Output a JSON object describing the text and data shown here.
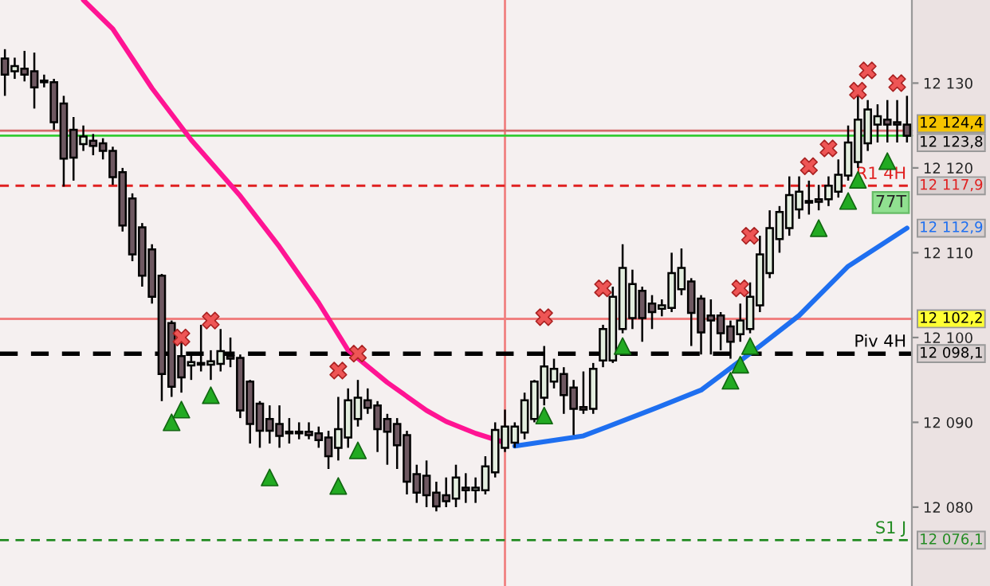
{
  "chart_data": {
    "type": "candlestick",
    "categories": [
      null,
      null,
      null,
      null,
      null,
      null,
      null,
      null,
      null,
      null,
      null,
      null,
      null,
      null,
      null,
      null,
      null,
      null,
      null,
      null,
      null,
      null,
      null,
      null,
      null,
      null,
      null,
      null,
      null,
      null,
      null,
      null,
      null,
      null,
      null,
      null,
      null,
      null,
      null,
      null,
      null,
      null,
      null,
      null,
      null,
      null,
      null,
      null,
      null,
      null,
      null,
      null,
      null,
      null,
      null,
      null,
      null,
      null,
      null,
      null,
      null,
      null,
      null,
      null,
      null,
      null,
      null,
      null,
      null,
      null,
      null,
      null,
      null,
      null,
      null,
      null,
      null,
      null,
      null,
      null,
      null,
      null,
      null,
      null,
      null,
      null,
      null,
      null,
      null,
      null,
      null,
      null,
      null
    ],
    "ohlc": [
      [
        12132.9,
        12134.0,
        12128.5,
        12131.0
      ],
      [
        12131.4,
        12133.0,
        12130.5,
        12132.0
      ],
      [
        12131.7,
        12133.8,
        12130.2,
        12131.0
      ],
      [
        12131.4,
        12133.6,
        12127.0,
        12129.5
      ],
      [
        12130.3,
        12131.0,
        12129.5,
        12130.1
      ],
      [
        12130.1,
        12130.5,
        12124.5,
        12125.4
      ],
      [
        12127.6,
        12128.5,
        12117.8,
        12121.1
      ],
      [
        12124.5,
        12126.0,
        12118.5,
        12121.2
      ],
      [
        12122.8,
        12125.0,
        12122.0,
        12123.7
      ],
      [
        12123.2,
        12124.0,
        12121.5,
        12122.6
      ],
      [
        12122.9,
        12123.5,
        12121.0,
        12122.0
      ],
      [
        12122.0,
        12122.5,
        12118.0,
        12118.9
      ],
      [
        12119.5,
        12120.0,
        12112.5,
        12113.2
      ],
      [
        12116.4,
        12117.0,
        12109.0,
        12109.8
      ],
      [
        12113.0,
        12113.5,
        12106.0,
        12107.3
      ],
      [
        12110.4,
        12111.0,
        12104.0,
        12104.8
      ],
      [
        12107.3,
        12107.5,
        12092.5,
        12095.7
      ],
      [
        12101.7,
        12102.0,
        12093.0,
        12094.2
      ],
      [
        12097.8,
        12099.5,
        12093.5,
        12095.3
      ],
      [
        12096.7,
        12098.0,
        12095.0,
        12097.1
      ],
      [
        12096.8,
        12101.5,
        12096.0,
        12097.0
      ],
      [
        12096.8,
        12098.5,
        12095.0,
        12097.2
      ],
      [
        12096.9,
        12101.0,
        12096.0,
        12098.4
      ],
      [
        12097.8,
        12100.0,
        12096.5,
        12097.5
      ],
      [
        12097.6,
        12098.0,
        12090.5,
        12091.4
      ],
      [
        12094.8,
        12095.0,
        12087.5,
        12089.8
      ],
      [
        12092.2,
        12092.5,
        12087.0,
        12089.0
      ],
      [
        12090.4,
        12092.0,
        12087.5,
        12089.0
      ],
      [
        12089.8,
        12092.0,
        12087.0,
        12088.4
      ],
      [
        12088.9,
        12090.5,
        12087.5,
        12088.7
      ],
      [
        12088.9,
        12090.0,
        12088.0,
        12088.7
      ],
      [
        12088.9,
        12090.0,
        12088.0,
        12088.5
      ],
      [
        12088.7,
        12089.5,
        12087.0,
        12087.9
      ],
      [
        12088.2,
        12089.0,
        12084.5,
        12086.0
      ],
      [
        12087.0,
        12093.0,
        12085.5,
        12089.2
      ],
      [
        12088.2,
        12094.0,
        12087.0,
        12092.6
      ],
      [
        12090.4,
        12095.0,
        12089.5,
        12092.9
      ],
      [
        12092.6,
        12094.0,
        12091.0,
        12091.7
      ],
      [
        12092.0,
        12092.5,
        12086.5,
        12089.2
      ],
      [
        12090.4,
        12091.0,
        12085.0,
        12088.9
      ],
      [
        12089.8,
        12090.5,
        12084.5,
        12087.3
      ],
      [
        12088.5,
        12089.0,
        12081.5,
        12083.0
      ],
      [
        12083.9,
        12085.0,
        12080.5,
        12081.7
      ],
      [
        12083.7,
        12085.5,
        12080.0,
        12081.4
      ],
      [
        12081.7,
        12083.0,
        12079.5,
        12080.1
      ],
      [
        12081.4,
        12083.5,
        12080.0,
        12080.7
      ],
      [
        12081.0,
        12085.0,
        12080.0,
        12083.5
      ],
      [
        12082.3,
        12084.0,
        12080.5,
        12082.0
      ],
      [
        12082.0,
        12083.5,
        12080.5,
        12082.3
      ],
      [
        12082.0,
        12086.0,
        12081.5,
        12084.8
      ],
      [
        12084.1,
        12090.0,
        12083.5,
        12089.1
      ],
      [
        12087.0,
        12091.5,
        12086.5,
        12089.5
      ],
      [
        12087.6,
        12090.0,
        12087.0,
        12089.5
      ],
      [
        12088.8,
        12093.5,
        12088.0,
        12092.6
      ],
      [
        12090.4,
        12095.0,
        12090.0,
        12094.8
      ],
      [
        12092.9,
        12099.0,
        12092.0,
        12096.6
      ],
      [
        12094.8,
        12097.5,
        12094.0,
        12096.3
      ],
      [
        12095.7,
        12096.5,
        12091.0,
        12093.2
      ],
      [
        12094.1,
        12095.0,
        12088.5,
        12091.6
      ],
      [
        12091.8,
        12096.0,
        12091.0,
        12091.5
      ],
      [
        12091.6,
        12097.0,
        12091.0,
        12096.3
      ],
      [
        12097.3,
        12101.5,
        12096.5,
        12101.0
      ],
      [
        12097.3,
        12106.0,
        12097.0,
        12104.8
      ],
      [
        12101.0,
        12111.0,
        12100.5,
        12108.2
      ],
      [
        12102.3,
        12108.0,
        12101.0,
        12106.3
      ],
      [
        12105.5,
        12106.0,
        12099.5,
        12102.3
      ],
      [
        12104.0,
        12105.0,
        12101.0,
        12103.0
      ],
      [
        12103.4,
        12104.5,
        12102.5,
        12103.8
      ],
      [
        12103.5,
        12110.0,
        12103.0,
        12107.6
      ],
      [
        12105.7,
        12110.5,
        12105.0,
        12108.2
      ],
      [
        12106.6,
        12107.0,
        12099.0,
        12102.9
      ],
      [
        12104.6,
        12105.0,
        12098.0,
        12100.6
      ],
      [
        12102.6,
        12104.5,
        12098.0,
        12102.0
      ],
      [
        12102.6,
        12103.0,
        12098.5,
        12100.5
      ],
      [
        12101.3,
        12102.0,
        12097.5,
        12099.5
      ],
      [
        12100.4,
        12104.0,
        12099.5,
        12102.0
      ],
      [
        12101.0,
        12106.5,
        12100.5,
        12104.8
      ],
      [
        12103.8,
        12112.0,
        12103.0,
        12109.8
      ],
      [
        12107.6,
        12115.0,
        12107.0,
        12112.9
      ],
      [
        12111.6,
        12115.5,
        12110.0,
        12114.8
      ],
      [
        12112.9,
        12119.0,
        12112.0,
        12116.8
      ],
      [
        12115.1,
        12119.0,
        12114.0,
        12117.2
      ],
      [
        12116.1,
        12118.5,
        12114.5,
        12115.9
      ],
      [
        12116.3,
        12118.0,
        12115.0,
        12116.0
      ],
      [
        12116.3,
        12119.0,
        12115.5,
        12117.9
      ],
      [
        12117.2,
        12121.0,
        12116.5,
        12119.2
      ],
      [
        12119.1,
        12125.0,
        12118.5,
        12123.0
      ],
      [
        12120.7,
        12128.5,
        12120.0,
        12125.7
      ],
      [
        12122.9,
        12128.0,
        12122.0,
        12126.9
      ],
      [
        12125.1,
        12127.5,
        12123.0,
        12126.1
      ],
      [
        12125.7,
        12128.0,
        12123.0,
        12125.1
      ],
      [
        12125.4,
        12128.0,
        12123.0,
        12125.1
      ],
      [
        12125.1,
        12128.5,
        12123.0,
        12123.8
      ]
    ],
    "series": [
      {
        "type": "line",
        "color": "#ff1493",
        "values": [
          null,
          null,
          null,
          null,
          null,
          null,
          null,
          null,
          12139.8,
          null,
          null,
          12136.4,
          null,
          null,
          null,
          12129.4,
          null,
          null,
          null,
          12123.3,
          null,
          null,
          null,
          null,
          12116.7,
          null,
          null,
          null,
          12110.7,
          null,
          null,
          null,
          12104.1,
          null,
          null,
          12098.5,
          null,
          null,
          null,
          12094.7,
          null,
          null,
          null,
          12091.4,
          null,
          12090.1,
          null,
          null,
          12088.7,
          null,
          null,
          12087.6,
          null,
          null,
          null,
          null,
          null,
          null,
          null,
          null,
          null,
          null,
          null,
          null,
          null,
          null,
          null,
          null,
          null,
          null,
          null,
          null,
          null,
          null,
          null,
          null,
          null,
          null,
          null,
          null,
          null,
          null,
          null,
          null,
          null,
          null,
          null,
          null,
          null,
          null,
          null,
          null,
          null
        ]
      },
      {
        "type": "line",
        "color": "#1e6ff0",
        "values": [
          null,
          null,
          null,
          null,
          null,
          null,
          null,
          null,
          null,
          null,
          null,
          null,
          null,
          null,
          null,
          null,
          null,
          null,
          null,
          null,
          null,
          null,
          null,
          null,
          null,
          null,
          null,
          null,
          null,
          null,
          null,
          null,
          null,
          null,
          null,
          null,
          null,
          null,
          null,
          null,
          null,
          null,
          null,
          null,
          null,
          null,
          null,
          null,
          null,
          null,
          null,
          null,
          12087.2,
          null,
          null,
          null,
          null,
          null,
          null,
          12088.4,
          null,
          null,
          null,
          null,
          null,
          null,
          12091.5,
          null,
          null,
          null,
          null,
          12093.8,
          null,
          null,
          null,
          null,
          null,
          12099.0,
          null,
          null,
          null,
          12102.6,
          null,
          null,
          null,
          null,
          12108.4,
          null,
          null,
          null,
          null,
          null,
          12112.9
        ]
      },
      {
        "type": "scatter",
        "marker": "cross",
        "color": "#ee5555",
        "values": [
          null,
          null,
          null,
          null,
          null,
          null,
          null,
          null,
          null,
          null,
          null,
          null,
          null,
          null,
          null,
          null,
          null,
          null,
          12100.0,
          null,
          null,
          12102.0,
          null,
          null,
          null,
          null,
          null,
          null,
          null,
          null,
          null,
          null,
          null,
          null,
          12096.1,
          null,
          12098.1,
          null,
          null,
          null,
          null,
          null,
          null,
          null,
          null,
          null,
          null,
          null,
          null,
          null,
          null,
          null,
          null,
          null,
          null,
          12102.4,
          null,
          null,
          null,
          null,
          null,
          12105.8,
          null,
          null,
          null,
          null,
          null,
          null,
          null,
          null,
          null,
          null,
          null,
          null,
          null,
          12105.8,
          12112.0,
          null,
          null,
          null,
          null,
          null,
          12120.2,
          null,
          12122.3,
          null,
          null,
          12129.1,
          12131.5,
          null,
          null,
          12130.0,
          null
        ]
      },
      {
        "type": "scatter",
        "marker": "triangle",
        "color": "#22aa22",
        "values": [
          null,
          null,
          null,
          null,
          null,
          null,
          null,
          null,
          null,
          null,
          null,
          null,
          null,
          null,
          null,
          null,
          null,
          12090.0,
          12091.5,
          null,
          null,
          12093.2,
          null,
          null,
          null,
          null,
          null,
          12083.5,
          null,
          null,
          null,
          null,
          null,
          null,
          12082.5,
          null,
          12086.7,
          null,
          null,
          null,
          null,
          null,
          null,
          null,
          null,
          null,
          null,
          null,
          null,
          null,
          null,
          null,
          null,
          null,
          null,
          12090.8,
          null,
          null,
          null,
          null,
          null,
          null,
          null,
          12099.0,
          null,
          null,
          null,
          null,
          null,
          null,
          null,
          null,
          null,
          null,
          12094.9,
          12096.8,
          12099.0,
          null,
          null,
          null,
          null,
          null,
          null,
          12112.9,
          null,
          null,
          12116.1,
          12118.6,
          null,
          null,
          12120.8,
          null,
          null
        ]
      }
    ],
    "ylim": [
      12070.7,
      12139.8
    ],
    "yticks": [
      {
        "value": 12130,
        "label": "12 130"
      },
      {
        "value": 12120,
        "label": "12 120"
      },
      {
        "value": 12110,
        "label": "12 110"
      },
      {
        "value": 12100,
        "label": "12 100"
      },
      {
        "value": 12090,
        "label": "12 090"
      },
      {
        "value": 12080,
        "label": "12 080"
      }
    ],
    "ref_lines": [
      {
        "axis": "y",
        "value": 12124.4,
        "color": "#d46a6a",
        "line_style": "solid"
      },
      {
        "axis": "y",
        "value": 12123.8,
        "color": "#33cc33",
        "line_style": "solid"
      },
      {
        "axis": "y",
        "value": 12117.9,
        "label": "R1 4H",
        "color": "#e02020",
        "line_style": "dashed"
      },
      {
        "axis": "y",
        "value": 12102.2,
        "color": "#f08080",
        "line_style": "solid"
      },
      {
        "axis": "y",
        "value": 12098.1,
        "label": "Piv 4H",
        "color": "#000000",
        "line_style": "dashed"
      },
      {
        "axis": "y",
        "value": 12076.1,
        "label": "S1 J",
        "color": "#228b22",
        "line_style": "dashed"
      }
    ],
    "annotations": [
      "12 124,4",
      "12 123,8",
      "77T",
      "12 117,9",
      "12 112,9",
      "12 102,2",
      "12 098,1",
      "12 076,1"
    ],
    "grid": false
  }
}
